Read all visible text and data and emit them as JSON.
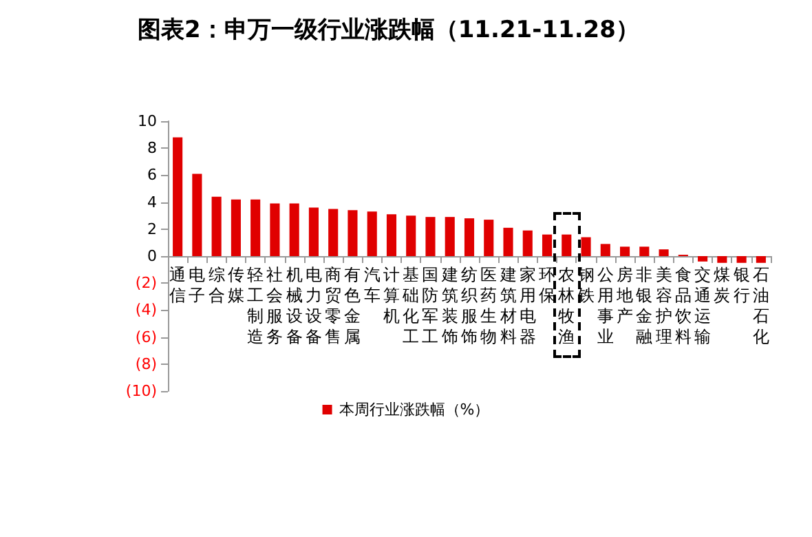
{
  "chart_data": {
    "type": "bar",
    "title": "图表2：申万一级行业涨跌幅（11.21-11.28）",
    "categories": [
      "通信",
      "电子",
      "综合",
      "传媒",
      "轻工制造",
      "社会服务",
      "机械设备",
      "电力设备",
      "商贸零售",
      "有色金属",
      "汽车",
      "计算机",
      "基础化工",
      "国防军工",
      "建筑装饰",
      "纺织服饰",
      "医药生物",
      "建筑材料",
      "家用电器",
      "环保",
      "农林牧渔",
      "钢铁",
      "公用事业",
      "房地产",
      "非银金融",
      "美容护理",
      "食品饮料",
      "交通运输",
      "煤炭",
      "银行",
      "石油石化"
    ],
    "series": [
      {
        "name": "本周行业涨跌幅（%）",
        "color": "#e00000",
        "values": [
          8.8,
          6.1,
          4.4,
          4.2,
          4.2,
          3.9,
          3.9,
          3.6,
          3.5,
          3.4,
          3.3,
          3.1,
          3.0,
          2.9,
          2.9,
          2.8,
          2.7,
          2.1,
          1.9,
          1.6,
          1.6,
          1.4,
          0.9,
          0.7,
          0.7,
          0.5,
          0.1,
          -0.4,
          -0.5,
          -0.5,
          -0.5
        ]
      }
    ],
    "ylim": [
      -10,
      10
    ],
    "yticks": [
      {
        "value": -10,
        "label": "(10)"
      },
      {
        "value": -8,
        "label": "(8)"
      },
      {
        "value": -6,
        "label": "(6)"
      },
      {
        "value": -4,
        "label": "(4)"
      },
      {
        "value": -2,
        "label": "(2)"
      },
      0,
      2,
      4,
      6,
      8,
      10
    ],
    "grid": false,
    "legend": "bottom"
  }
}
